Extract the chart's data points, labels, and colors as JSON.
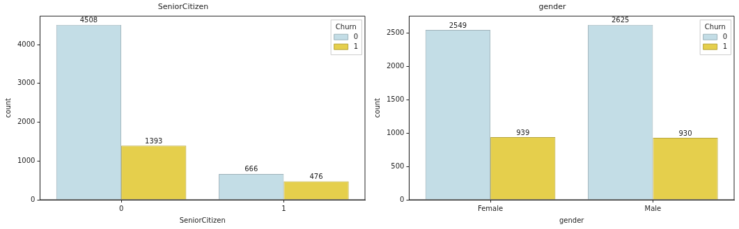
{
  "chart_data": [
    {
      "type": "bar",
      "title": "SeniorCitizen",
      "xlabel": "SeniorCitizen",
      "ylabel": "count",
      "legend_title": "Churn",
      "categories": [
        "0",
        "1"
      ],
      "series": [
        {
          "name": "0",
          "color": "#c3dde6",
          "values": [
            4508,
            666
          ]
        },
        {
          "name": "1",
          "color": "#e5cf4c",
          "values": [
            1393,
            476
          ]
        }
      ],
      "ylim": [
        0,
        4733
      ],
      "yticks": [
        0,
        1000,
        2000,
        3000,
        4000
      ],
      "grid": false,
      "legend": "top right",
      "data_labels": true
    },
    {
      "type": "bar",
      "title": "gender",
      "xlabel": "gender",
      "ylabel": "count",
      "legend_title": "Churn",
      "categories": [
        "Female",
        "Male"
      ],
      "series": [
        {
          "name": "0",
          "color": "#c3dde6",
          "values": [
            2549,
            2625
          ]
        },
        {
          "name": "1",
          "color": "#e5cf4c",
          "values": [
            939,
            930
          ]
        }
      ],
      "ylim": [
        0,
        2756
      ],
      "yticks": [
        0,
        500,
        1000,
        1500,
        2000,
        2500
      ],
      "grid": false,
      "legend": "top right",
      "data_labels": true
    }
  ]
}
